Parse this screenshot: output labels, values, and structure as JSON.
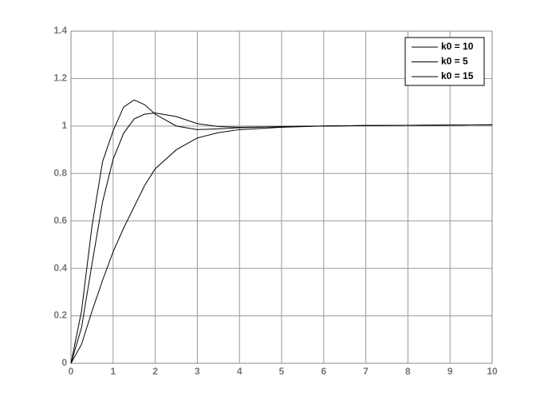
{
  "chart_data": {
    "type": "line",
    "x": [
      0,
      0.25,
      0.5,
      0.75,
      1,
      1.25,
      1.5,
      1.75,
      2,
      2.5,
      3,
      3.5,
      4,
      5,
      6,
      7,
      8,
      9,
      10
    ],
    "series": [
      {
        "name": "k0 = 10",
        "color": "#000000",
        "values": [
          0,
          0.15,
          0.42,
          0.68,
          0.86,
          0.97,
          1.03,
          1.05,
          1.055,
          1.04,
          1.01,
          0.998,
          0.995,
          0.997,
          1.0,
          1.002,
          1.003,
          1.004,
          1.005
        ]
      },
      {
        "name": "k0 = 5",
        "color": "#000000",
        "values": [
          0,
          0.08,
          0.22,
          0.35,
          0.47,
          0.57,
          0.66,
          0.75,
          0.82,
          0.9,
          0.95,
          0.972,
          0.985,
          0.995,
          1.0,
          1.002,
          1.003,
          1.004,
          1.005
        ]
      },
      {
        "name": "k0 = 15",
        "color": "#000000",
        "values": [
          0,
          0.22,
          0.58,
          0.85,
          0.98,
          1.08,
          1.11,
          1.09,
          1.05,
          1.0,
          0.985,
          0.988,
          0.993,
          0.998,
          1.0,
          1.002,
          1.003,
          1.004,
          1.005
        ]
      }
    ],
    "xlim": [
      0,
      10
    ],
    "xticks": [
      0,
      1,
      2,
      3,
      4,
      5,
      6,
      7,
      8,
      9,
      10
    ],
    "ylim": [
      0,
      1.4
    ],
    "yticks": [
      0,
      0.2,
      0.4,
      0.6,
      0.8,
      1,
      1.2,
      1.4
    ],
    "grid": true,
    "legend_position": "upper right"
  }
}
